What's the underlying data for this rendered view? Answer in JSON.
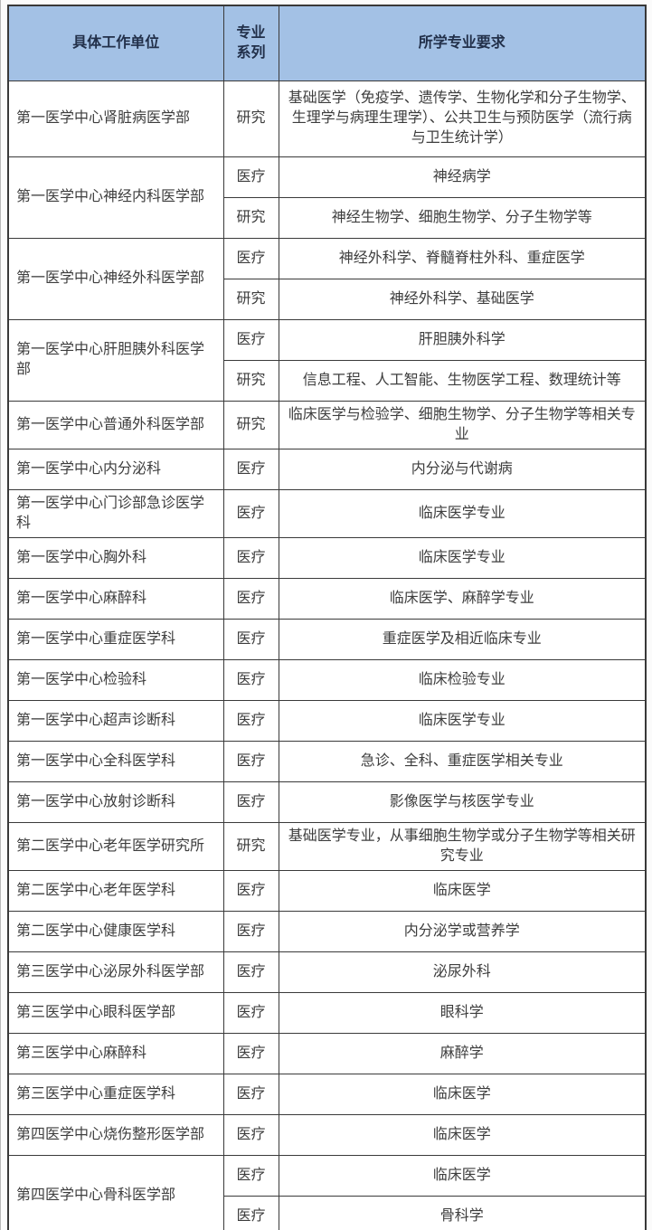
{
  "table": {
    "headers": [
      "具体工作单位",
      "专业系列",
      "所学专业要求"
    ],
    "groups": [
      {
        "unit": "第一医学中心肾脏病医学部",
        "rows": [
          {
            "series": "研究",
            "requirement": "基础医学（免疫学、遗传学、生物化学和分子生物学、生理学与病理生理学）、公共卫生与预防医学（流行病与卫生统计学）"
          }
        ]
      },
      {
        "unit": "第一医学中心神经内科医学部",
        "rows": [
          {
            "series": "医疗",
            "requirement": "神经病学"
          },
          {
            "series": "研究",
            "requirement": "神经生物学、细胞生物学、分子生物学等"
          }
        ]
      },
      {
        "unit": "第一医学中心神经外科医学部",
        "rows": [
          {
            "series": "医疗",
            "requirement": "神经外科学、脊髓脊柱外科、重症医学"
          },
          {
            "series": "研究",
            "requirement": "神经外科学、基础医学"
          }
        ]
      },
      {
        "unit": "第一医学中心肝胆胰外科医学部",
        "rows": [
          {
            "series": "医疗",
            "requirement": "肝胆胰外科学"
          },
          {
            "series": "研究",
            "requirement": "信息工程、人工智能、生物医学工程、数理统计等"
          }
        ]
      },
      {
        "unit": "第一医学中心普通外科医学部",
        "rows": [
          {
            "series": "研究",
            "requirement": "临床医学与检验学、细胞生物学、分子生物学等相关专业"
          }
        ]
      },
      {
        "unit": "第一医学中心内分泌科",
        "rows": [
          {
            "series": "医疗",
            "requirement": "内分泌与代谢病"
          }
        ]
      },
      {
        "unit": "第一医学中心门诊部急诊医学科",
        "rows": [
          {
            "series": "医疗",
            "requirement": "临床医学专业"
          }
        ]
      },
      {
        "unit": "第一医学中心胸外科",
        "rows": [
          {
            "series": "医疗",
            "requirement": "临床医学专业"
          }
        ]
      },
      {
        "unit": "第一医学中心麻醉科",
        "rows": [
          {
            "series": "医疗",
            "requirement": "临床医学、麻醉学专业"
          }
        ]
      },
      {
        "unit": "第一医学中心重症医学科",
        "rows": [
          {
            "series": "医疗",
            "requirement": "重症医学及相近临床专业"
          }
        ]
      },
      {
        "unit": "第一医学中心检验科",
        "rows": [
          {
            "series": "医疗",
            "requirement": "临床检验专业"
          }
        ]
      },
      {
        "unit": "第一医学中心超声诊断科",
        "rows": [
          {
            "series": "医疗",
            "requirement": "临床医学专业"
          }
        ]
      },
      {
        "unit": "第一医学中心全科医学科",
        "rows": [
          {
            "series": "医疗",
            "requirement": "急诊、全科、重症医学相关专业"
          }
        ]
      },
      {
        "unit": "第一医学中心放射诊断科",
        "rows": [
          {
            "series": "医疗",
            "requirement": "影像医学与核医学专业"
          }
        ]
      },
      {
        "unit": "第二医学中心老年医学研究所",
        "rows": [
          {
            "series": "研究",
            "requirement": "基础医学专业，从事细胞生物学或分子生物学等相关研究专业"
          }
        ]
      },
      {
        "unit": "第二医学中心老年医学科",
        "rows": [
          {
            "series": "医疗",
            "requirement": "临床医学"
          }
        ]
      },
      {
        "unit": "第二医学中心健康医学科",
        "rows": [
          {
            "series": "医疗",
            "requirement": "内分泌学或营养学"
          }
        ]
      },
      {
        "unit": "第三医学中心泌尿外科医学部",
        "rows": [
          {
            "series": "医疗",
            "requirement": "泌尿外科"
          }
        ]
      },
      {
        "unit": "第三医学中心眼科医学部",
        "rows": [
          {
            "series": "医疗",
            "requirement": "眼科学"
          }
        ]
      },
      {
        "unit": "第三医学中心麻醉科",
        "rows": [
          {
            "series": "医疗",
            "requirement": "麻醉学"
          }
        ]
      },
      {
        "unit": "第三医学中心重症医学科",
        "rows": [
          {
            "series": "医疗",
            "requirement": "临床医学"
          }
        ]
      },
      {
        "unit": "第四医学中心烧伤整形医学部",
        "rows": [
          {
            "series": "医疗",
            "requirement": "临床医学"
          }
        ]
      },
      {
        "unit": "第四医学中心骨科医学部",
        "rows": [
          {
            "series": "医疗",
            "requirement": "临床医学"
          },
          {
            "series": "医疗",
            "requirement": "骨科学"
          }
        ]
      }
    ],
    "colors": {
      "header_bg": "#a3c1e5",
      "header_text": "#22304a",
      "body_text": "#3d3d3d",
      "border": "#3a3a3a"
    }
  }
}
